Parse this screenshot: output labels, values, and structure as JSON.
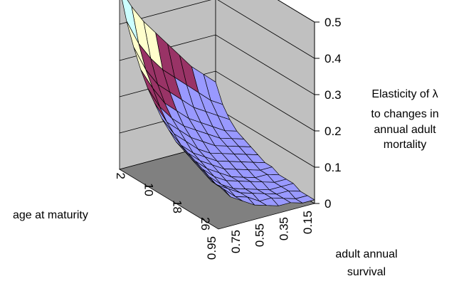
{
  "chart_data": {
    "type": "surface",
    "title": "",
    "zlabel_lines": [
      "Elasticity of λ",
      "to changes in",
      "annual adult",
      "mortality"
    ],
    "xlabel": "age at maturity",
    "ylabel_lines": [
      "adult annual",
      "survival"
    ],
    "x_tick_labels": [
      "2",
      "10",
      "18",
      "26"
    ],
    "y_tick_labels": [
      "0.95",
      "0.75",
      "0.55",
      "0.35",
      "0.15"
    ],
    "z_tick_labels": [
      "0",
      "0.1",
      "0.2",
      "0.3",
      "0.4",
      "0.5"
    ],
    "zlim": [
      0,
      0.5
    ],
    "x_grid": [
      2,
      4,
      6,
      8,
      10,
      12,
      14,
      16,
      18,
      20,
      22,
      24,
      26,
      28,
      30
    ],
    "y_grid": [
      0.95,
      0.85,
      0.75,
      0.65,
      0.55,
      0.45,
      0.35,
      0.25,
      0.15
    ],
    "z_values": [
      [
        0.5,
        0.44,
        0.39,
        0.35,
        0.31,
        0.27,
        0.23,
        0.2,
        0.17
      ],
      [
        0.42,
        0.35,
        0.3,
        0.26,
        0.23,
        0.2,
        0.17,
        0.14,
        0.12
      ],
      [
        0.36,
        0.29,
        0.24,
        0.21,
        0.18,
        0.15,
        0.13,
        0.11,
        0.09
      ],
      [
        0.31,
        0.25,
        0.2,
        0.17,
        0.14,
        0.12,
        0.1,
        0.08,
        0.07
      ],
      [
        0.27,
        0.21,
        0.17,
        0.14,
        0.12,
        0.1,
        0.08,
        0.07,
        0.06
      ],
      [
        0.24,
        0.18,
        0.15,
        0.12,
        0.1,
        0.08,
        0.07,
        0.06,
        0.05
      ],
      [
        0.21,
        0.16,
        0.13,
        0.1,
        0.08,
        0.07,
        0.06,
        0.05,
        0.04
      ],
      [
        0.19,
        0.14,
        0.11,
        0.09,
        0.07,
        0.06,
        0.05,
        0.04,
        0.03
      ],
      [
        0.17,
        0.13,
        0.1,
        0.08,
        0.06,
        0.05,
        0.04,
        0.03,
        0.03
      ],
      [
        0.16,
        0.12,
        0.09,
        0.07,
        0.05,
        0.04,
        0.03,
        0.03,
        0.02
      ],
      [
        0.15,
        0.11,
        0.08,
        0.06,
        0.05,
        0.04,
        0.03,
        0.02,
        0.02
      ],
      [
        0.14,
        0.1,
        0.07,
        0.05,
        0.04,
        0.03,
        0.02,
        0.02,
        0.02
      ],
      [
        0.13,
        0.09,
        0.07,
        0.05,
        0.04,
        0.03,
        0.02,
        0.02,
        0.01
      ],
      [
        0.12,
        0.09,
        0.06,
        0.05,
        0.03,
        0.03,
        0.02,
        0.01,
        0.01
      ],
      [
        0.12,
        0.08,
        0.06,
        0.04,
        0.03,
        0.02,
        0.02,
        0.01,
        0.01
      ]
    ],
    "color_bands": [
      {
        "from": 0.0,
        "to": 0.2,
        "color": "#9999ff"
      },
      {
        "from": 0.2,
        "to": 0.3,
        "color": "#993366"
      },
      {
        "from": 0.3,
        "to": 0.4,
        "color": "#ffffcc"
      },
      {
        "from": 0.4,
        "to": 0.45,
        "color": "#ccffff"
      },
      {
        "from": 0.45,
        "to": 0.5,
        "color": "#660066"
      }
    ],
    "wall_color": "#c0c0c0",
    "floor_color": "#808080",
    "grid": true,
    "legend": "none"
  }
}
